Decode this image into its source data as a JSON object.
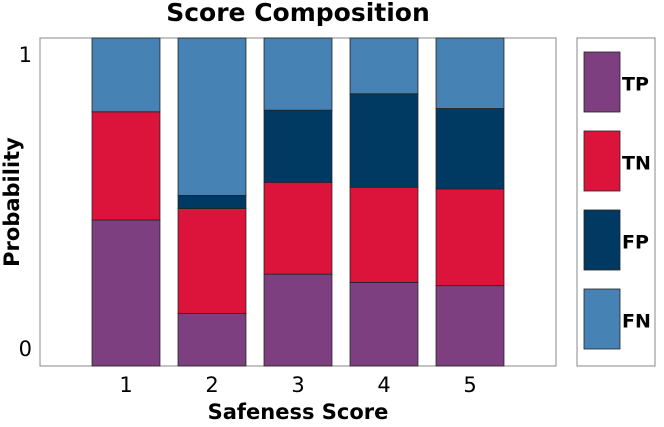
{
  "chart_data": {
    "type": "stacked_bar",
    "title": "Score Composition",
    "xlabel": "Safeness Score",
    "ylabel": "Probability",
    "x": [
      1,
      2,
      3,
      4,
      5
    ],
    "xlim": [
      0,
      6
    ],
    "ylim": [
      0,
      1
    ],
    "yticks": [
      0,
      1
    ],
    "series": [
      {
        "name": "TP",
        "color": "#7d3f80",
        "values": [
          0.445,
          0.16,
          0.28,
          0.255,
          0.245
        ]
      },
      {
        "name": "TN",
        "color": "#dc143c",
        "values": [
          0.33,
          0.32,
          0.28,
          0.29,
          0.295
        ]
      },
      {
        "name": "FP",
        "color": "#003a63",
        "values": [
          0,
          0.04,
          0.22,
          0.285,
          0.245
        ]
      },
      {
        "name": "FN",
        "color": "#4682b4",
        "values": [
          0.225,
          0.48,
          0.22,
          0.17,
          0.215
        ]
      }
    ]
  }
}
